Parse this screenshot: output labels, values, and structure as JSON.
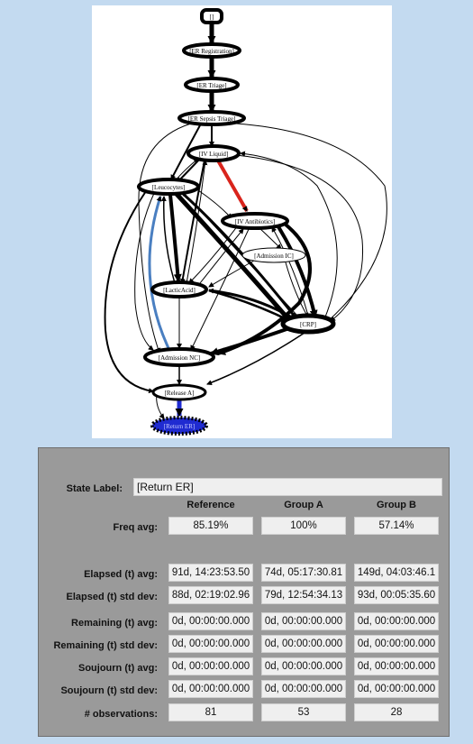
{
  "graph": {
    "nodes": [
      {
        "id": "start",
        "label": "[]"
      },
      {
        "id": "er_reg",
        "label": "[ER Registration]"
      },
      {
        "id": "er_triage",
        "label": "[ER Triage]"
      },
      {
        "id": "er_sepsis",
        "label": "[ER Sepsis Triage]"
      },
      {
        "id": "iv_liquid",
        "label": "[IV Liquid]"
      },
      {
        "id": "leucocytes",
        "label": "[Leucocytes]"
      },
      {
        "id": "iv_antibiotics",
        "label": "[IV Antibiotics]"
      },
      {
        "id": "admission_ic",
        "label": "[Admission IC]"
      },
      {
        "id": "lacticacid",
        "label": "[LacticAcid]"
      },
      {
        "id": "crp",
        "label": "[CRP]"
      },
      {
        "id": "admission_nc",
        "label": "[Admission NC]"
      },
      {
        "id": "release_a",
        "label": "[Release A]"
      },
      {
        "id": "return_er",
        "label": "[Return ER]"
      }
    ],
    "highlight_colors": {
      "selected_node": "#1f2bd1",
      "red_edge": "#d9241c",
      "blue_edge": "#4a7fc1"
    }
  },
  "stats": {
    "state_label_caption": "State Label:",
    "state_label_value": "[Return ER]",
    "columns": [
      "Reference",
      "Group A",
      "Group B"
    ],
    "rows": [
      {
        "label": "Freq avg:",
        "values": [
          "85.19%",
          "100%",
          "57.14%"
        ]
      },
      {
        "label": "Elapsed (t) avg:",
        "values": [
          "91d, 14:23:53.50",
          "74d, 05:17:30.81",
          "149d, 04:03:46.1"
        ]
      },
      {
        "label": "Elapsed (t) std dev:",
        "values": [
          "88d, 02:19:02.96",
          "79d, 12:54:34.13",
          "93d, 00:05:35.60"
        ]
      },
      {
        "label": "Remaining (t) avg:",
        "values": [
          "0d, 00:00:00.000",
          "0d, 00:00:00.000",
          "0d, 00:00:00.000"
        ]
      },
      {
        "label": "Remaining (t) std dev:",
        "values": [
          "0d, 00:00:00.000",
          "0d, 00:00:00.000",
          "0d, 00:00:00.000"
        ]
      },
      {
        "label": "Soujourn (t) avg:",
        "values": [
          "0d, 00:00:00.000",
          "0d, 00:00:00.000",
          "0d, 00:00:00.000"
        ]
      },
      {
        "label": "Soujourn (t) std dev:",
        "values": [
          "0d, 00:00:00.000",
          "0d, 00:00:00.000",
          "0d, 00:00:00.000"
        ]
      },
      {
        "label": "# observations:",
        "values": [
          "81",
          "53",
          "28"
        ]
      }
    ]
  }
}
